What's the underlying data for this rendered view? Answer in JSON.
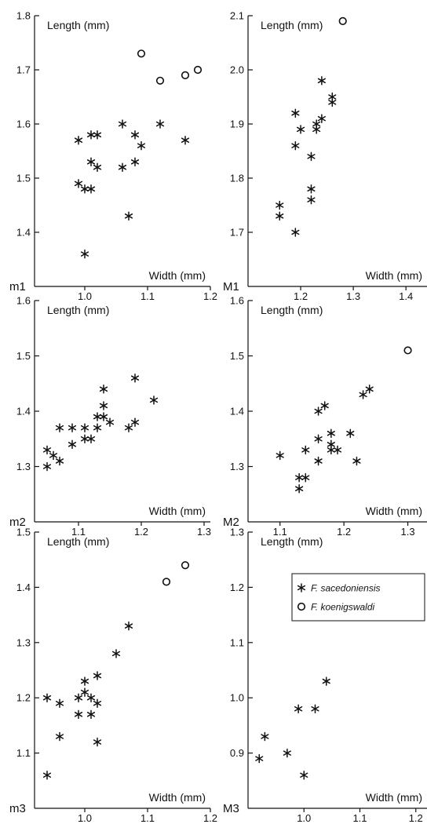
{
  "legend": {
    "entries": [
      {
        "label": "F. sacedoniensis",
        "marker": "asterisk"
      },
      {
        "label": "F. koenigswaldi",
        "marker": "circle"
      }
    ]
  },
  "chart_data": [
    {
      "type": "scatter",
      "panel": "m1",
      "xlabel": "Width (mm)",
      "ylabel": "Length (mm)",
      "xlim": [
        0.92,
        1.2
      ],
      "ylim": [
        1.3,
        1.8
      ],
      "xticks": [
        {
          "v": 1.0,
          "label": "1.0"
        },
        {
          "v": 1.1,
          "label": "1.1"
        },
        {
          "v": 1.2,
          "label": "1.2"
        }
      ],
      "yticks": [
        {
          "v": 1.4,
          "label": "1.4"
        },
        {
          "v": 1.5,
          "label": "1.5"
        },
        {
          "v": 1.6,
          "label": "1.6"
        },
        {
          "v": 1.7,
          "label": "1.7"
        },
        {
          "v": 1.8,
          "label": "1.8"
        }
      ],
      "series": [
        {
          "name": "F. sacedoniensis",
          "marker": "asterisk",
          "points": [
            [
              0.99,
              1.57
            ],
            [
              1.01,
              1.58
            ],
            [
              1.02,
              1.58
            ],
            [
              1.01,
              1.53
            ],
            [
              1.02,
              1.52
            ],
            [
              0.99,
              1.49
            ],
            [
              1.0,
              1.48
            ],
            [
              1.01,
              1.48
            ],
            [
              1.06,
              1.6
            ],
            [
              1.08,
              1.58
            ],
            [
              1.09,
              1.56
            ],
            [
              1.08,
              1.53
            ],
            [
              1.06,
              1.52
            ],
            [
              1.12,
              1.6
            ],
            [
              1.16,
              1.57
            ],
            [
              1.07,
              1.43
            ],
            [
              1.0,
              1.36
            ]
          ]
        },
        {
          "name": "F. koenigswaldi",
          "marker": "circle",
          "points": [
            [
              1.09,
              1.73
            ],
            [
              1.12,
              1.68
            ],
            [
              1.16,
              1.69
            ],
            [
              1.18,
              1.7
            ]
          ]
        }
      ]
    },
    {
      "type": "scatter",
      "panel": "M1",
      "xlabel": "Width (mm)",
      "ylabel": "Length (mm)",
      "xlim": [
        1.1,
        1.44
      ],
      "ylim": [
        1.6,
        2.1
      ],
      "xticks": [
        {
          "v": 1.2,
          "label": "1.2"
        },
        {
          "v": 1.3,
          "label": "1.3"
        },
        {
          "v": 1.4,
          "label": "1.4"
        }
      ],
      "yticks": [
        {
          "v": 1.7,
          "label": "1.7"
        },
        {
          "v": 1.8,
          "label": "1.8"
        },
        {
          "v": 1.9,
          "label": "1.9"
        },
        {
          "v": 2.0,
          "label": "2.0"
        },
        {
          "v": 2.1,
          "label": "2.1"
        }
      ],
      "series": [
        {
          "name": "F. sacedoniensis",
          "marker": "asterisk",
          "points": [
            [
              1.24,
              1.98
            ],
            [
              1.26,
              1.95
            ],
            [
              1.26,
              1.94
            ],
            [
              1.19,
              1.92
            ],
            [
              1.24,
              1.91
            ],
            [
              1.23,
              1.9
            ],
            [
              1.2,
              1.89
            ],
            [
              1.23,
              1.89
            ],
            [
              1.19,
              1.86
            ],
            [
              1.22,
              1.84
            ],
            [
              1.22,
              1.78
            ],
            [
              1.22,
              1.76
            ],
            [
              1.16,
              1.75
            ],
            [
              1.16,
              1.73
            ],
            [
              1.19,
              1.7
            ]
          ]
        },
        {
          "name": "F. koenigswaldi",
          "marker": "circle",
          "points": [
            [
              1.28,
              2.09
            ]
          ]
        }
      ]
    },
    {
      "type": "scatter",
      "panel": "m2",
      "xlabel": "Width (mm)",
      "ylabel": "Length (mm)",
      "xlim": [
        1.03,
        1.31
      ],
      "ylim": [
        1.2,
        1.6
      ],
      "xticks": [
        {
          "v": 1.1,
          "label": "1.1"
        },
        {
          "v": 1.2,
          "label": "1.2"
        },
        {
          "v": 1.3,
          "label": "1.3"
        }
      ],
      "yticks": [
        {
          "v": 1.3,
          "label": "1.3"
        },
        {
          "v": 1.4,
          "label": "1.4"
        },
        {
          "v": 1.5,
          "label": "1.5"
        },
        {
          "v": 1.6,
          "label": "1.6"
        }
      ],
      "series": [
        {
          "name": "F. sacedoniensis",
          "marker": "asterisk",
          "points": [
            [
              1.19,
              1.46
            ],
            [
              1.14,
              1.44
            ],
            [
              1.22,
              1.42
            ],
            [
              1.14,
              1.41
            ],
            [
              1.13,
              1.39
            ],
            [
              1.14,
              1.39
            ],
            [
              1.15,
              1.38
            ],
            [
              1.19,
              1.38
            ],
            [
              1.07,
              1.37
            ],
            [
              1.09,
              1.37
            ],
            [
              1.11,
              1.37
            ],
            [
              1.13,
              1.37
            ],
            [
              1.18,
              1.37
            ],
            [
              1.11,
              1.35
            ],
            [
              1.12,
              1.35
            ],
            [
              1.09,
              1.34
            ],
            [
              1.05,
              1.33
            ],
            [
              1.06,
              1.32
            ],
            [
              1.07,
              1.31
            ],
            [
              1.05,
              1.3
            ]
          ]
        }
      ]
    },
    {
      "type": "scatter",
      "panel": "M2",
      "xlabel": "Width (mm)",
      "ylabel": "Length (mm)",
      "xlim": [
        1.05,
        1.33
      ],
      "ylim": [
        1.2,
        1.6
      ],
      "xticks": [
        {
          "v": 1.1,
          "label": "1.1"
        },
        {
          "v": 1.2,
          "label": "1.2"
        },
        {
          "v": 1.3,
          "label": "1.3"
        }
      ],
      "yticks": [
        {
          "v": 1.3,
          "label": "1.3"
        },
        {
          "v": 1.4,
          "label": "1.4"
        },
        {
          "v": 1.5,
          "label": "1.5"
        },
        {
          "v": 1.6,
          "label": "1.6"
        }
      ],
      "series": [
        {
          "name": "F. sacedoniensis",
          "marker": "asterisk",
          "points": [
            [
              1.24,
              1.44
            ],
            [
              1.23,
              1.43
            ],
            [
              1.17,
              1.41
            ],
            [
              1.16,
              1.4
            ],
            [
              1.21,
              1.36
            ],
            [
              1.18,
              1.36
            ],
            [
              1.16,
              1.35
            ],
            [
              1.18,
              1.34
            ],
            [
              1.14,
              1.33
            ],
            [
              1.18,
              1.33
            ],
            [
              1.19,
              1.33
            ],
            [
              1.1,
              1.32
            ],
            [
              1.16,
              1.31
            ],
            [
              1.22,
              1.31
            ],
            [
              1.13,
              1.28
            ],
            [
              1.14,
              1.28
            ],
            [
              1.13,
              1.26
            ]
          ]
        },
        {
          "name": "F. koenigswaldi",
          "marker": "circle",
          "points": [
            [
              1.3,
              1.51
            ]
          ]
        }
      ]
    },
    {
      "type": "scatter",
      "panel": "m3",
      "xlabel": "Width (mm)",
      "ylabel": "Length (mm)",
      "xlim": [
        0.92,
        1.2
      ],
      "ylim": [
        1.0,
        1.5
      ],
      "xticks": [
        {
          "v": 1.0,
          "label": "1.0"
        },
        {
          "v": 1.1,
          "label": "1.1"
        },
        {
          "v": 1.2,
          "label": "1.2"
        }
      ],
      "yticks": [
        {
          "v": 1.1,
          "label": "1.1"
        },
        {
          "v": 1.2,
          "label": "1.2"
        },
        {
          "v": 1.3,
          "label": "1.3"
        },
        {
          "v": 1.4,
          "label": "1.4"
        },
        {
          "v": 1.5,
          "label": "1.5"
        }
      ],
      "series": [
        {
          "name": "F. sacedoniensis",
          "marker": "asterisk",
          "points": [
            [
              1.07,
              1.33
            ],
            [
              1.05,
              1.28
            ],
            [
              1.02,
              1.24
            ],
            [
              1.0,
              1.23
            ],
            [
              1.0,
              1.21
            ],
            [
              1.01,
              1.2
            ],
            [
              0.99,
              1.2
            ],
            [
              0.94,
              1.2
            ],
            [
              0.96,
              1.19
            ],
            [
              1.02,
              1.19
            ],
            [
              0.99,
              1.17
            ],
            [
              1.01,
              1.17
            ],
            [
              0.96,
              1.13
            ],
            [
              1.02,
              1.12
            ],
            [
              0.94,
              1.06
            ]
          ]
        },
        {
          "name": "F. koenigswaldi",
          "marker": "circle",
          "points": [
            [
              1.13,
              1.41
            ],
            [
              1.16,
              1.44
            ]
          ]
        }
      ]
    },
    {
      "type": "scatter",
      "panel": "M3",
      "xlabel": "Width (mm)",
      "ylabel": "Length (mm)",
      "xlim": [
        0.9,
        1.22
      ],
      "ylim": [
        0.8,
        1.3
      ],
      "xticks": [
        {
          "v": 1.0,
          "label": "1.0"
        },
        {
          "v": 1.1,
          "label": "1.1"
        },
        {
          "v": 1.2,
          "label": "1.2"
        }
      ],
      "yticks": [
        {
          "v": 0.9,
          "label": "0.9"
        },
        {
          "v": 1.0,
          "label": "1.0"
        },
        {
          "v": 1.1,
          "label": "1.1"
        },
        {
          "v": 1.2,
          "label": "1.2"
        },
        {
          "v": 1.3,
          "label": "1.3"
        }
      ],
      "series": [
        {
          "name": "F. sacedoniensis",
          "marker": "asterisk",
          "points": [
            [
              1.04,
              1.03
            ],
            [
              0.99,
              0.98
            ],
            [
              1.02,
              0.98
            ],
            [
              0.93,
              0.93
            ],
            [
              0.97,
              0.9
            ],
            [
              0.92,
              0.89
            ],
            [
              1.0,
              0.86
            ]
          ]
        }
      ]
    }
  ]
}
